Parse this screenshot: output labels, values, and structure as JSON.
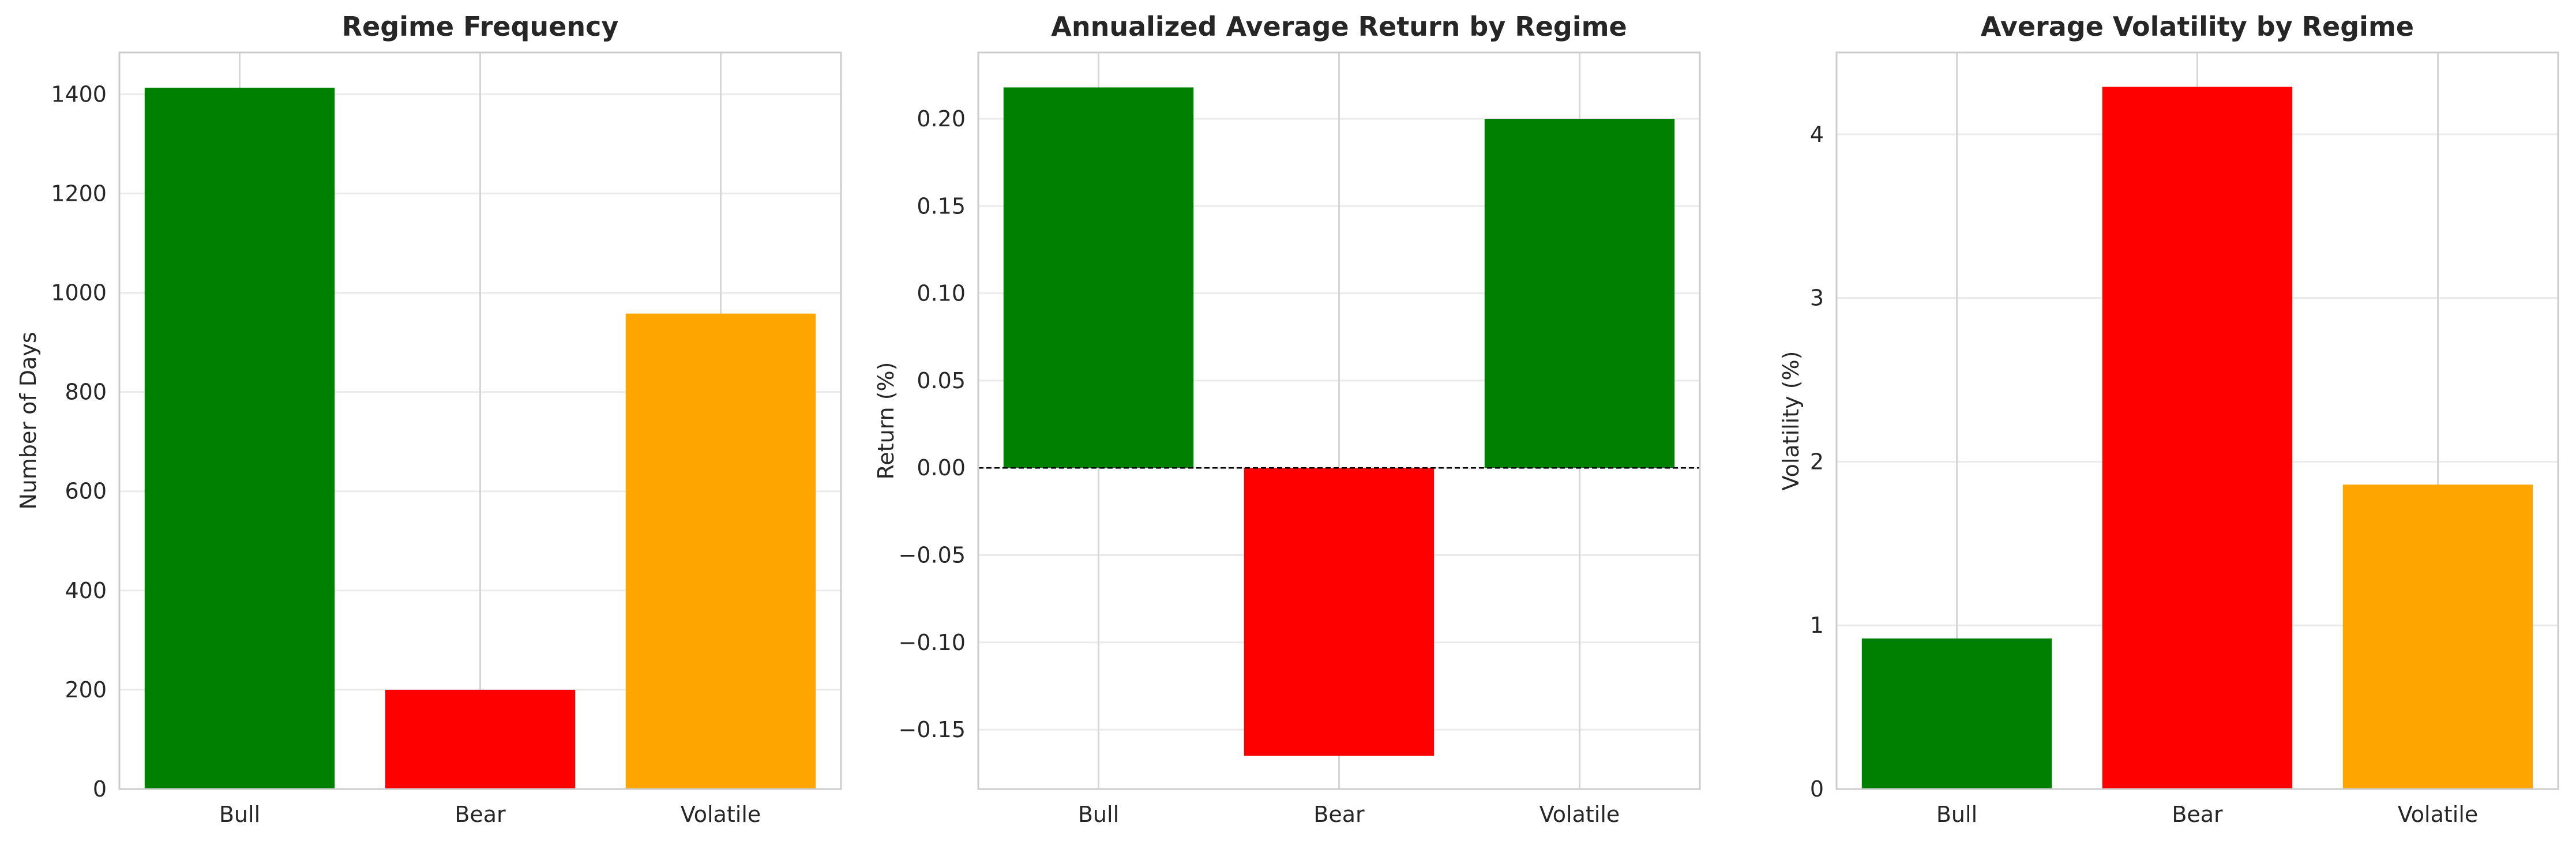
{
  "chart_data": [
    {
      "type": "bar",
      "title": "Regime Frequency",
      "xlabel": "",
      "ylabel": "Number of Days",
      "categories": [
        "Bull",
        "Bear",
        "Volatile"
      ],
      "values": [
        1413,
        200,
        958
      ],
      "colors": [
        "#008000",
        "#ff0000",
        "#ffa500"
      ],
      "ylim": [
        0,
        1484
      ],
      "yticks": [
        0,
        200,
        400,
        600,
        800,
        1000,
        1200,
        1400
      ],
      "ytick_labels": [
        "0",
        "200",
        "400",
        "600",
        "800",
        "1000",
        "1200",
        "1400"
      ],
      "grid": true,
      "zero_line": false
    },
    {
      "type": "bar",
      "title": "Annualized Average Return by Regime",
      "xlabel": "",
      "ylabel": "Return (%)",
      "categories": [
        "Bull",
        "Bear",
        "Volatile"
      ],
      "values": [
        0.218,
        -0.165,
        0.2
      ],
      "colors": [
        "#008000",
        "#ff0000",
        "#008000"
      ],
      "ylim": [
        -0.184,
        0.238
      ],
      "yticks": [
        -0.15,
        -0.1,
        -0.05,
        0.0,
        0.05,
        0.1,
        0.15,
        0.2
      ],
      "ytick_labels": [
        "−0.15",
        "−0.10",
        "−0.05",
        "0.00",
        "0.05",
        "0.10",
        "0.15",
        "0.20"
      ],
      "grid": true,
      "zero_line": true
    },
    {
      "type": "bar",
      "title": "Average Volatility by Regime",
      "xlabel": "",
      "ylabel": "Volatility (%)",
      "categories": [
        "Bull",
        "Bear",
        "Volatile"
      ],
      "values": [
        0.92,
        4.29,
        1.86
      ],
      "colors": [
        "#008000",
        "#ff0000",
        "#ffa500"
      ],
      "ylim": [
        0,
        4.5
      ],
      "yticks": [
        0,
        1,
        2,
        3,
        4
      ],
      "ytick_labels": [
        "0",
        "1",
        "2",
        "3",
        "4"
      ],
      "grid": true,
      "zero_line": false
    }
  ]
}
